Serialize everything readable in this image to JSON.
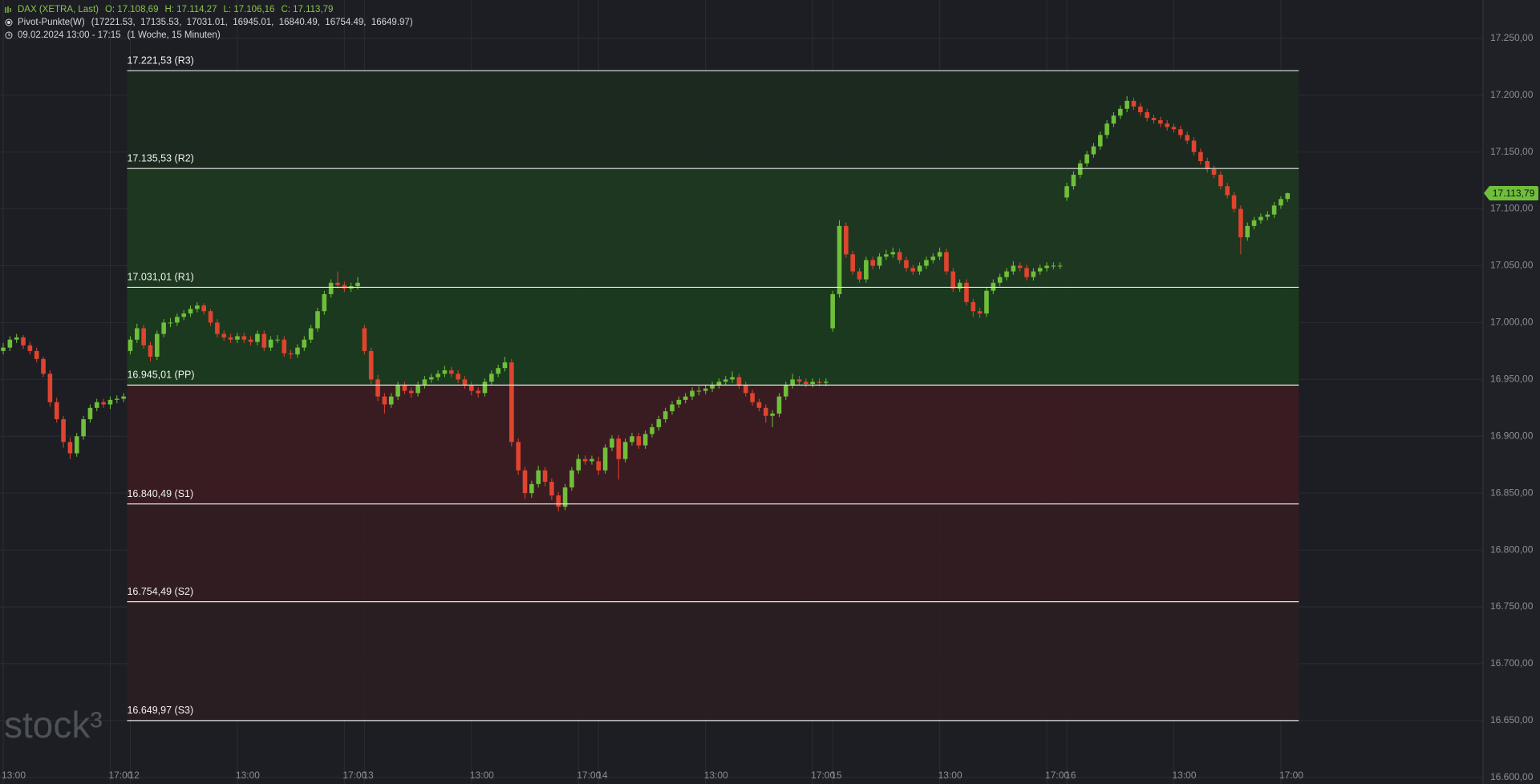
{
  "header": {
    "instrument": "DAX (XETRA, Last)",
    "ohlc": [
      "O: 17.108,69",
      "H: 17.114,27",
      "L: 17.106,16",
      "C: 17.113,79"
    ],
    "indicator": "Pivot-Punkte(W)",
    "indicator_values": "(17221.53,  17135.53,  17031.01,  16945.01,  16840.49,  16754.49,  16649.97)",
    "range": "09.02.2024 13:00 - 17:15",
    "interval": "(1 Woche, 15 Minuten)"
  },
  "chart_data": {
    "type": "candlestick",
    "watermark": "stock³",
    "up_color": "#6fbf3a",
    "down_color": "#e0442f",
    "grid": true,
    "ylim": [
      16594.2,
      17283.7
    ],
    "yticks": [
      {
        "value": 17250,
        "label": "17.250,00"
      },
      {
        "value": 17200,
        "label": "17.200,00"
      },
      {
        "value": 17150,
        "label": "17.150,00"
      },
      {
        "value": 17100,
        "label": "17.100,00"
      },
      {
        "value": 17050,
        "label": "17.050,00"
      },
      {
        "value": 17000,
        "label": "17.000,00"
      },
      {
        "value": 16950,
        "label": "16.950,00"
      },
      {
        "value": 16900,
        "label": "16.900,00"
      },
      {
        "value": 16850,
        "label": "16.850,00"
      },
      {
        "value": 16800,
        "label": "16.800,00"
      },
      {
        "value": 16750,
        "label": "16.750,00"
      },
      {
        "value": 16700,
        "label": "16.700,00"
      },
      {
        "value": 16650,
        "label": "16.650,00"
      },
      {
        "value": 16600,
        "label": "16.600,00"
      }
    ],
    "last_price": {
      "value": 17113.79,
      "label": "17.113,79",
      "color": "#6fbf3a"
    },
    "pivots": [
      {
        "value": 17221.53,
        "label": "17.221,53 (R3)"
      },
      {
        "value": 17135.53,
        "label": "17.135,53 (R2)"
      },
      {
        "value": 17031.01,
        "label": "17.031,01 (R1)"
      },
      {
        "value": 16945.01,
        "label": "16.945,01 (PP)"
      },
      {
        "value": 16840.49,
        "label": "16.840,49 (S1)"
      },
      {
        "value": 16754.49,
        "label": "16.754,49 (S2)"
      },
      {
        "value": 16649.97,
        "label": "16.649,97 (S3)"
      }
    ],
    "zone_colors": [
      "#1b2a20",
      "#1d3a21",
      "#1b3c1e",
      "#3c1c22",
      "#331d22",
      "#2a1f24"
    ],
    "categories": [
      "13:00",
      null,
      null,
      null,
      null,
      null,
      null,
      null,
      null,
      null,
      null,
      null,
      null,
      null,
      null,
      null,
      "17:00",
      null,
      null,
      "12",
      null,
      null,
      null,
      null,
      null,
      null,
      null,
      null,
      null,
      null,
      null,
      null,
      null,
      null,
      null,
      "13:00",
      null,
      null,
      null,
      null,
      null,
      null,
      null,
      null,
      null,
      null,
      null,
      null,
      null,
      null,
      null,
      "17:00",
      null,
      null,
      "13",
      null,
      null,
      null,
      null,
      null,
      null,
      null,
      null,
      null,
      null,
      null,
      null,
      null,
      null,
      null,
      "13:00",
      null,
      null,
      null,
      null,
      null,
      null,
      null,
      null,
      null,
      null,
      null,
      null,
      null,
      null,
      null,
      "17:00",
      null,
      null,
      "14",
      null,
      null,
      null,
      null,
      null,
      null,
      null,
      null,
      null,
      null,
      null,
      null,
      null,
      null,
      null,
      "13:00",
      null,
      null,
      null,
      null,
      null,
      null,
      null,
      null,
      null,
      null,
      null,
      null,
      null,
      null,
      null,
      "17:00",
      null,
      null,
      "15",
      null,
      null,
      null,
      null,
      null,
      null,
      null,
      null,
      null,
      null,
      null,
      null,
      null,
      null,
      null,
      "13:00",
      null,
      null,
      null,
      null,
      null,
      null,
      null,
      null,
      null,
      null,
      null,
      null,
      null,
      null,
      null,
      "17:00",
      null,
      null,
      "16",
      null,
      null,
      null,
      null,
      null,
      null,
      null,
      null,
      null,
      null,
      null,
      null,
      null,
      null,
      null,
      "13:00",
      null,
      null,
      null,
      null,
      null,
      null,
      null,
      null,
      null,
      null,
      null,
      null,
      null,
      null,
      null,
      "17:00",
      null
    ],
    "ohlc": [
      [
        16975,
        16982,
        16972,
        16978
      ],
      [
        16978,
        16988,
        16975,
        16985
      ],
      [
        16985,
        16990,
        16982,
        16987
      ],
      [
        16987,
        16989,
        16977,
        16980
      ],
      [
        16980,
        16983,
        16972,
        16975
      ],
      [
        16975,
        16978,
        16965,
        16968
      ],
      [
        16968,
        16970,
        16952,
        16955
      ],
      [
        16955,
        16958,
        16926,
        16930
      ],
      [
        16930,
        16934,
        16912,
        16915
      ],
      [
        16915,
        16918,
        16890,
        16895
      ],
      [
        16895,
        16899,
        16880,
        16885
      ],
      [
        16885,
        16903,
        16882,
        16900
      ],
      [
        16900,
        16918,
        16897,
        16915
      ],
      [
        16915,
        16928,
        16912,
        16925
      ],
      [
        16925,
        16933,
        16922,
        16930
      ],
      [
        16930,
        16933,
        16925,
        16928
      ],
      [
        16928,
        16935,
        16924,
        16932
      ],
      [
        16932,
        16936,
        16929,
        16933
      ],
      [
        16933,
        16938,
        16930,
        16935
      ],
      [
        16975,
        16988,
        16972,
        16985
      ],
      [
        16985,
        16999,
        16982,
        16995
      ],
      [
        16995,
        16998,
        16977,
        16980
      ],
      [
        16980,
        16983,
        16966,
        16970
      ],
      [
        16970,
        16993,
        16967,
        16990
      ],
      [
        16990,
        17003,
        16987,
        17000
      ],
      [
        17000,
        17004,
        16996,
        17000
      ],
      [
        17000,
        17008,
        16997,
        17005
      ],
      [
        17005,
        17011,
        17002,
        17008
      ],
      [
        17008,
        17015,
        17005,
        17012
      ],
      [
        17012,
        17018,
        17009,
        17015
      ],
      [
        17015,
        17017,
        17007,
        17010
      ],
      [
        17010,
        17012,
        16997,
        17000
      ],
      [
        17000,
        17003,
        16987,
        16990
      ],
      [
        16990,
        16993,
        16984,
        16987
      ],
      [
        16987,
        16990,
        16982,
        16985
      ],
      [
        16985,
        16991,
        16982,
        16988
      ],
      [
        16988,
        16991,
        16982,
        16985
      ],
      [
        16985,
        16988,
        16980,
        16983
      ],
      [
        16983,
        16993,
        16980,
        16990
      ],
      [
        16990,
        16993,
        16975,
        16978
      ],
      [
        16978,
        16988,
        16975,
        16985
      ],
      [
        16985,
        16989,
        16982,
        16985
      ],
      [
        16985,
        16988,
        16970,
        16973
      ],
      [
        16973,
        16976,
        16968,
        16972
      ],
      [
        16972,
        16981,
        16969,
        16978
      ],
      [
        16978,
        16988,
        16975,
        16985
      ],
      [
        16985,
        16998,
        16982,
        16995
      ],
      [
        16995,
        17013,
        16992,
        17010
      ],
      [
        17010,
        17028,
        17007,
        17025
      ],
      [
        17025,
        17038,
        17022,
        17035
      ],
      [
        17035,
        17045,
        17030,
        17033
      ],
      [
        17033,
        17036,
        17027,
        17030
      ],
      [
        17030,
        17035,
        17027,
        17032
      ],
      [
        17032,
        17040,
        17029,
        17035
      ],
      [
        16995,
        16998,
        16972,
        16975
      ],
      [
        16975,
        16978,
        16946,
        16950
      ],
      [
        16950,
        16954,
        16931,
        16935
      ],
      [
        16935,
        16938,
        16920,
        16928
      ],
      [
        16928,
        16938,
        16925,
        16935
      ],
      [
        16935,
        16948,
        16932,
        16945
      ],
      [
        16945,
        16948,
        16937,
        16940
      ],
      [
        16940,
        16943,
        16934,
        16938
      ],
      [
        16938,
        16948,
        16935,
        16945
      ],
      [
        16945,
        16953,
        16942,
        16950
      ],
      [
        16950,
        16955,
        16947,
        16952
      ],
      [
        16952,
        16958,
        16949,
        16955
      ],
      [
        16955,
        16962,
        16952,
        16958
      ],
      [
        16958,
        16961,
        16952,
        16955
      ],
      [
        16955,
        16958,
        16947,
        16950
      ],
      [
        16950,
        16953,
        16942,
        16945
      ],
      [
        16945,
        16948,
        16936,
        16940
      ],
      [
        16940,
        16943,
        16934,
        16938
      ],
      [
        16938,
        16951,
        16935,
        16948
      ],
      [
        16948,
        16958,
        16945,
        16955
      ],
      [
        16955,
        16963,
        16952,
        16960
      ],
      [
        16960,
        16970,
        16957,
        16965
      ],
      [
        16965,
        16968,
        16891,
        16895
      ],
      [
        16895,
        16898,
        16866,
        16870
      ],
      [
        16870,
        16873,
        16845,
        16850
      ],
      [
        16850,
        16861,
        16846,
        16858
      ],
      [
        16858,
        16874,
        16855,
        16870
      ],
      [
        16870,
        16873,
        16856,
        16860
      ],
      [
        16860,
        16863,
        16844,
        16848
      ],
      [
        16848,
        16851,
        16834,
        16838
      ],
      [
        16838,
        16858,
        16835,
        16855
      ],
      [
        16855,
        16873,
        16852,
        16870
      ],
      [
        16870,
        16884,
        16867,
        16880
      ],
      [
        16880,
        16883,
        16875,
        16878
      ],
      [
        16878,
        16883,
        16875,
        16880
      ],
      [
        16878,
        16882,
        16866,
        16870
      ],
      [
        16870,
        16893,
        16867,
        16890
      ],
      [
        16890,
        16901,
        16887,
        16898
      ],
      [
        16898,
        16901,
        16862,
        16880
      ],
      [
        16880,
        16898,
        16877,
        16895
      ],
      [
        16895,
        16903,
        16892,
        16900
      ],
      [
        16900,
        16903,
        16889,
        16892
      ],
      [
        16892,
        16905,
        16889,
        16902
      ],
      [
        16902,
        16911,
        16899,
        16908
      ],
      [
        16908,
        16918,
        16905,
        16915
      ],
      [
        16915,
        16925,
        16912,
        16922
      ],
      [
        16922,
        16931,
        16919,
        16928
      ],
      [
        16928,
        16935,
        16925,
        16932
      ],
      [
        16932,
        16938,
        16929,
        16935
      ],
      [
        16935,
        16943,
        16932,
        16940
      ],
      [
        16940,
        16944,
        16936,
        16940
      ],
      [
        16940,
        16945,
        16937,
        16942
      ],
      [
        16942,
        16948,
        16939,
        16945
      ],
      [
        16945,
        16951,
        16942,
        16948
      ],
      [
        16948,
        16953,
        16945,
        16950
      ],
      [
        16950,
        16957,
        16947,
        16952
      ],
      [
        16952,
        16955,
        16942,
        16945
      ],
      [
        16945,
        16948,
        16935,
        16938
      ],
      [
        16938,
        16941,
        16927,
        16930
      ],
      [
        16930,
        16933,
        16922,
        16925
      ],
      [
        16925,
        16928,
        16912,
        16918
      ],
      [
        16918,
        16923,
        16908,
        16920
      ],
      [
        16920,
        16938,
        16917,
        16935
      ],
      [
        16935,
        16948,
        16932,
        16945
      ],
      [
        16945,
        16955,
        16942,
        16950
      ],
      [
        16950,
        16953,
        16945,
        16948
      ],
      [
        16948,
        16951,
        16943,
        16946
      ],
      [
        16946,
        16951,
        16943,
        16948
      ],
      [
        16948,
        16951,
        16944,
        16947
      ],
      [
        16947,
        16951,
        16944,
        16948
      ],
      [
        16995,
        17028,
        16992,
        17025
      ],
      [
        17025,
        17090,
        17022,
        17085
      ],
      [
        17085,
        17088,
        17057,
        17060
      ],
      [
        17060,
        17063,
        17042,
        17045
      ],
      [
        17045,
        17048,
        17035,
        17038
      ],
      [
        17038,
        17058,
        17035,
        17055
      ],
      [
        17055,
        17058,
        17047,
        17050
      ],
      [
        17050,
        17061,
        17047,
        17058
      ],
      [
        17058,
        17064,
        17055,
        17060
      ],
      [
        17060,
        17066,
        17057,
        17062
      ],
      [
        17062,
        17065,
        17052,
        17055
      ],
      [
        17055,
        17058,
        17045,
        17048
      ],
      [
        17048,
        17051,
        17042,
        17045
      ],
      [
        17045,
        17053,
        17042,
        17050
      ],
      [
        17050,
        17058,
        17047,
        17055
      ],
      [
        17055,
        17061,
        17052,
        17058
      ],
      [
        17058,
        17066,
        17055,
        17062
      ],
      [
        17062,
        17065,
        17042,
        17045
      ],
      [
        17045,
        17048,
        17027,
        17030
      ],
      [
        17030,
        17038,
        17027,
        17035
      ],
      [
        17035,
        17038,
        17015,
        17018
      ],
      [
        17018,
        17021,
        17005,
        17010
      ],
      [
        17010,
        17013,
        17004,
        17008
      ],
      [
        17008,
        17031,
        17005,
        17028
      ],
      [
        17028,
        17038,
        17025,
        17035
      ],
      [
        17035,
        17043,
        17032,
        17040
      ],
      [
        17040,
        17048,
        17037,
        17045
      ],
      [
        17045,
        17054,
        17042,
        17050
      ],
      [
        17050,
        17053,
        17045,
        17048
      ],
      [
        17048,
        17051,
        17037,
        17040
      ],
      [
        17040,
        17048,
        17037,
        17045
      ],
      [
        17045,
        17051,
        17042,
        17048
      ],
      [
        17048,
        17053,
        17045,
        17050
      ],
      [
        17050,
        17053,
        17047,
        17050
      ],
      [
        17050,
        17053,
        17047,
        17050
      ],
      [
        17110,
        17123,
        17107,
        17120
      ],
      [
        17120,
        17133,
        17117,
        17130
      ],
      [
        17130,
        17143,
        17127,
        17140
      ],
      [
        17140,
        17151,
        17137,
        17148
      ],
      [
        17148,
        17158,
        17145,
        17155
      ],
      [
        17155,
        17168,
        17152,
        17165
      ],
      [
        17165,
        17178,
        17162,
        17175
      ],
      [
        17175,
        17185,
        17172,
        17182
      ],
      [
        17182,
        17191,
        17179,
        17188
      ],
      [
        17188,
        17199,
        17185,
        17195
      ],
      [
        17195,
        17198,
        17187,
        17190
      ],
      [
        17190,
        17193,
        17182,
        17185
      ],
      [
        17185,
        17188,
        17177,
        17180
      ],
      [
        17180,
        17183,
        17175,
        17178
      ],
      [
        17178,
        17181,
        17172,
        17175
      ],
      [
        17175,
        17178,
        17169,
        17172
      ],
      [
        17172,
        17175,
        17167,
        17170
      ],
      [
        17170,
        17173,
        17162,
        17165
      ],
      [
        17165,
        17168,
        17157,
        17160
      ],
      [
        17160,
        17163,
        17147,
        17150
      ],
      [
        17150,
        17153,
        17139,
        17142
      ],
      [
        17142,
        17145,
        17132,
        17135
      ],
      [
        17135,
        17138,
        17127,
        17130
      ],
      [
        17130,
        17133,
        17117,
        17120
      ],
      [
        17120,
        17123,
        17109,
        17112
      ],
      [
        17112,
        17115,
        17097,
        17100
      ],
      [
        17100,
        17103,
        17060,
        17075
      ],
      [
        17075,
        17088,
        17072,
        17085
      ],
      [
        17085,
        17093,
        17082,
        17090
      ],
      [
        17090,
        17096,
        17087,
        17093
      ],
      [
        17093,
        17098,
        17090,
        17095
      ],
      [
        17095,
        17106,
        17092,
        17103
      ],
      [
        17103,
        17111,
        17100,
        17108.69
      ],
      [
        17108.69,
        17114.27,
        17106.16,
        17113.79
      ]
    ]
  }
}
